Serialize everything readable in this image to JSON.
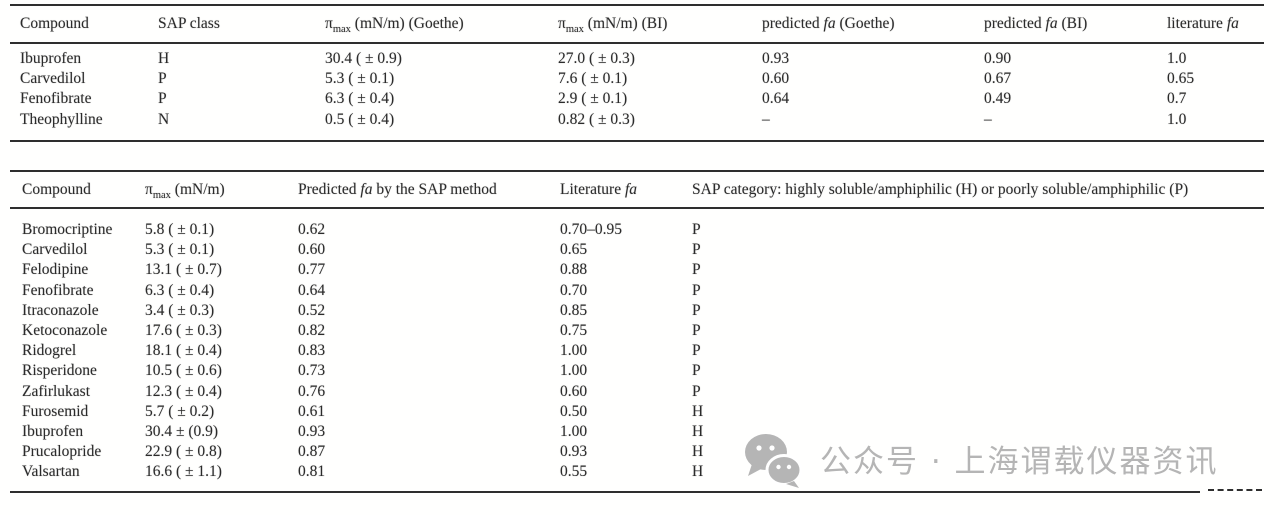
{
  "page": {
    "background": "#ffffff",
    "text_color": "#2b2b2b",
    "rule_color": "#2e2e2e"
  },
  "table1": {
    "columns": [
      {
        "segs": [
          {
            "t": "Compound"
          }
        ]
      },
      {
        "segs": [
          {
            "t": "SAP class"
          }
        ]
      },
      {
        "segs": [
          {
            "t": "π"
          },
          {
            "t": "max",
            "s": "sub"
          },
          {
            "t": " (mN/m) (Goethe)"
          }
        ]
      },
      {
        "segs": [
          {
            "t": "π"
          },
          {
            "t": "max",
            "s": "sub"
          },
          {
            "t": " (mN/m) (BI)"
          }
        ]
      },
      {
        "segs": [
          {
            "t": "predicted "
          },
          {
            "t": "fa",
            "s": "i"
          },
          {
            "t": " (Goethe)"
          }
        ]
      },
      {
        "segs": [
          {
            "t": "predicted "
          },
          {
            "t": "fa",
            "s": "i"
          },
          {
            "t": " (BI)"
          }
        ]
      },
      {
        "segs": [
          {
            "t": "literature "
          },
          {
            "t": "fa",
            "s": "i"
          }
        ]
      }
    ],
    "rows": [
      [
        "Ibuprofen",
        "H",
        "30.4 ( ± 0.9)",
        "27.0 ( ± 0.3)",
        "0.93",
        "0.90",
        "1.0"
      ],
      [
        "Carvedilol",
        "P",
        "5.3 ( ± 0.1)",
        "7.6 ( ± 0.1)",
        "0.60",
        "0.67",
        "0.65"
      ],
      [
        "Fenofibrate",
        "P",
        "6.3 ( ± 0.4)",
        "2.9 ( ± 0.1)",
        "0.64",
        "0.49",
        "0.7"
      ],
      [
        "Theophylline",
        "N",
        "0.5 ( ± 0.4)",
        "0.82 ( ± 0.3)",
        "–",
        "–",
        "1.0"
      ]
    ]
  },
  "table2": {
    "columns": [
      {
        "segs": [
          {
            "t": "Compound"
          }
        ]
      },
      {
        "segs": [
          {
            "t": "π"
          },
          {
            "t": "max",
            "s": "sub"
          },
          {
            "t": " (mN/m)"
          }
        ]
      },
      {
        "segs": [
          {
            "t": "Predicted "
          },
          {
            "t": "fa",
            "s": "i"
          },
          {
            "t": " by the SAP method"
          }
        ]
      },
      {
        "segs": [
          {
            "t": "Literature "
          },
          {
            "t": "fa",
            "s": "i"
          }
        ]
      },
      {
        "segs": [
          {
            "t": "SAP category: highly soluble/amphiphilic (H) or poorly soluble/amphiphilic (P)"
          }
        ]
      }
    ],
    "rows": [
      [
        "Bromocriptine",
        "5.8 ( ± 0.1)",
        "0.62",
        "0.70–0.95",
        "P"
      ],
      [
        "Carvedilol",
        "5.3 ( ± 0.1)",
        "0.60",
        "0.65",
        "P"
      ],
      [
        "Felodipine",
        "13.1 ( ± 0.7)",
        "0.77",
        "0.88",
        "P"
      ],
      [
        "Fenofibrate",
        "6.3 ( ± 0.4)",
        "0.64",
        "0.70",
        "P"
      ],
      [
        "Itraconazole",
        "3.4 ( ± 0.3)",
        "0.52",
        "0.85",
        "P"
      ],
      [
        "Ketoconazole",
        "17.6 ( ± 0.3)",
        "0.82",
        "0.75",
        "P"
      ],
      [
        "Ridogrel",
        "18.1 ( ± 0.4)",
        "0.83",
        "1.00",
        "P"
      ],
      [
        "Risperidone",
        "10.5 ( ± 0.6)",
        "0.73",
        "1.00",
        "P"
      ],
      [
        "Zafirlukast",
        "12.3 ( ± 0.4)",
        "0.76",
        "0.60",
        "P"
      ],
      [
        "Furosemid",
        "5.7 ( ± 0.2)",
        "0.61",
        "0.50",
        "H"
      ],
      [
        "Ibuprofen",
        "30.4 ± (0.9)",
        "0.93",
        "1.00",
        "H"
      ],
      [
        "Prucalopride",
        "22.9 ( ± 0.8)",
        "0.87",
        "0.93",
        "H"
      ],
      [
        "Valsartan",
        "16.6 ( ± 1.1)",
        "0.81",
        "0.55",
        "H"
      ]
    ]
  },
  "watermark": {
    "icon": "wechat-icon",
    "text": "公众号 · 上海谓载仪器资讯",
    "color": "#b5b5b5"
  }
}
